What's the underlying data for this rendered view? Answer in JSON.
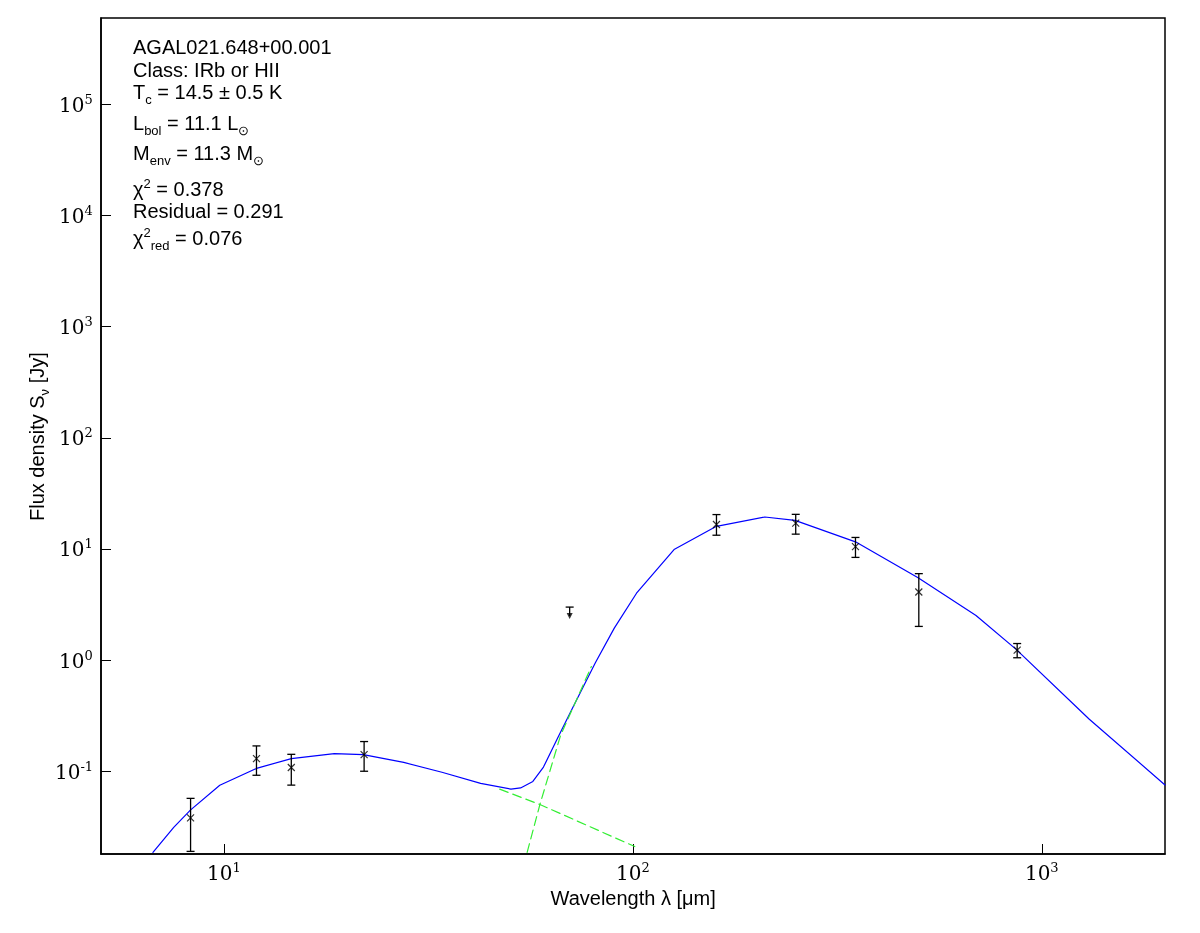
{
  "chart_data": {
    "type": "scatter",
    "xlabel": "Wavelength λ [μm]",
    "ylabel": "Flux density S$_{ν}$ [Jy]",
    "annotations": [
      "AGAL021.648+00.001",
      "Class: IRb or HII",
      "T$_{c}$ = 14.5 ± 0.5 K",
      "L$_{bol}$ = 11.1 L$_{⊙}$",
      "M$_{env}$ = 11.3 M$_{⊙}$",
      "χ$^{2}$ = 0.378",
      "Residual = 0.291",
      "χ$^{2}$$_{red}$ = 0.076"
    ],
    "log": "xy",
    "xlim": [
      5,
      2000
    ],
    "ylim": [
      0.018,
      600000
    ],
    "xticks": [
      {
        "value": 10,
        "label": "10$^{1}$"
      },
      {
        "value": 100,
        "label": "10$^{2}$"
      },
      {
        "value": 1000,
        "label": "10$^{3}$"
      }
    ],
    "yticks": [
      {
        "value": 0.1,
        "label": "10$^{-1}$"
      },
      {
        "value": 1,
        "label": "10$^{0}$"
      },
      {
        "value": 10,
        "label": "10$^{1}$"
      },
      {
        "value": 100,
        "label": "10$^{2}$"
      },
      {
        "value": 1000,
        "label": "10$^{3}$"
      },
      {
        "value": 10000,
        "label": "10$^{4}$"
      },
      {
        "value": 100000,
        "label": "10$^{5}$"
      }
    ],
    "series": [
      {
        "color": "#000000",
        "marker": "cross",
        "x": [
          8.28,
          12,
          14.6,
          22,
          160,
          250,
          350,
          500,
          870
        ],
        "values": [
          0.038,
          0.13,
          0.108,
          0.141,
          16.6,
          17.1,
          10.5,
          4.1,
          1.23
        ],
        "errors": [
          [
            0.019,
            0.057
          ],
          [
            0.092,
            0.169
          ],
          [
            0.075,
            0.142
          ],
          [
            0.1,
            0.185
          ],
          [
            13.3,
            20.4
          ],
          [
            13.6,
            20.5
          ],
          [
            8.4,
            12.7
          ],
          [
            2.01,
            6.0
          ],
          [
            1.05,
            1.41
          ]
        ]
      },
      {
        "color": "#000000",
        "marker": "triangle",
        "x": [
          70
        ],
        "values": [
          2.5
        ],
        "errors": [
          [
            2.5,
            3.0
          ]
        ]
      },
      {
        "type": "line",
        "color": "#0000ff",
        "line_style": "solid",
        "x": [
          6.7,
          7.53,
          8.27,
          9.76,
          12,
          14.6,
          18.6,
          21.9,
          27.5,
          34.1,
          42.4,
          50.3,
          53.1,
          56.9,
          60.4,
          65.2,
          71,
          80.9,
          90,
          102,
          126,
          160,
          210,
          249,
          350,
          498,
          690,
          865,
          1306,
          2000
        ],
        "values": [
          0.0186,
          0.0313,
          0.0447,
          0.0748,
          0.106,
          0.13,
          0.144,
          0.141,
          0.12,
          0.098,
          0.0778,
          0.069,
          0.0708,
          0.081,
          0.109,
          0.194,
          0.365,
          0.948,
          1.94,
          4.0,
          9.89,
          16.0,
          19.4,
          18.1,
          11.6,
          5.51,
          2.52,
          1.25,
          0.294,
          0.0753
        ]
      },
      {
        "type": "line",
        "color": "#33ee33",
        "line_style": "dashed",
        "x": [
          47.2,
          59.2,
          101
        ],
        "values": [
          0.069,
          0.0502,
          0.021
        ]
      },
      {
        "type": "line",
        "color": "#33ee33",
        "line_style": "dashed",
        "x": [
          55.1,
          59.2,
          66.5,
          79.1
        ],
        "values": [
          0.0186,
          0.0502,
          0.21,
          0.875
        ]
      }
    ]
  }
}
